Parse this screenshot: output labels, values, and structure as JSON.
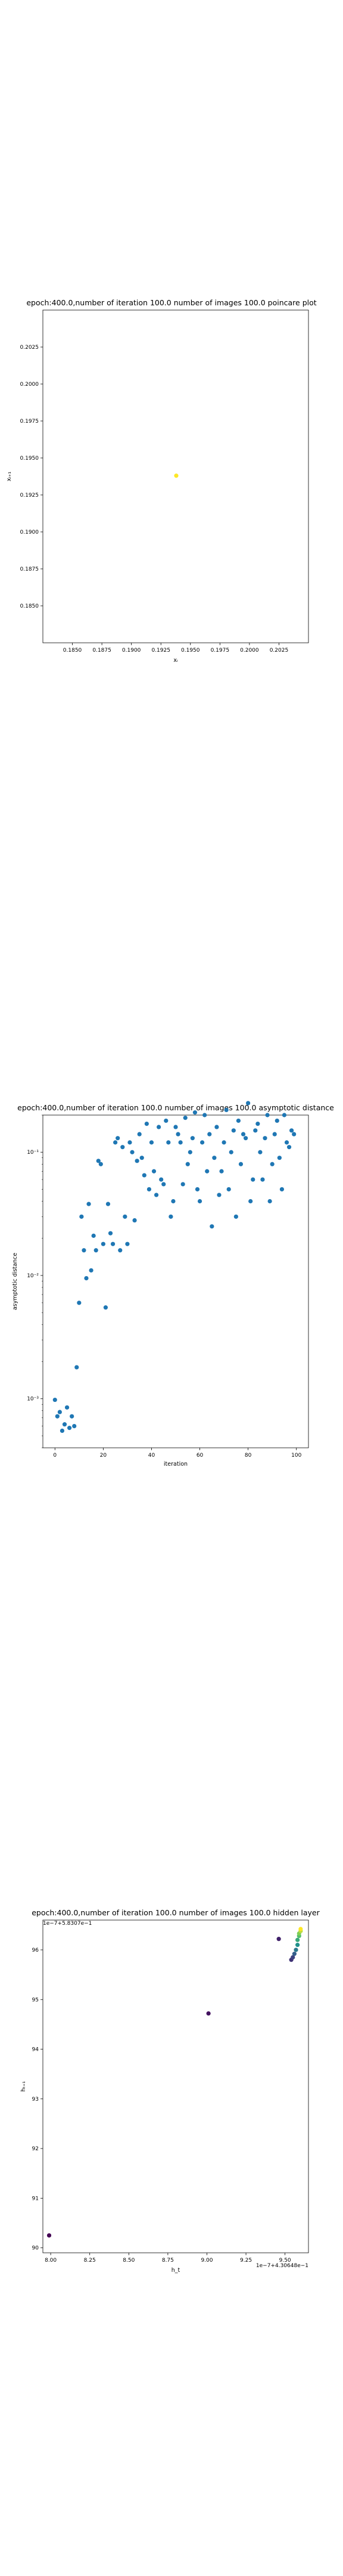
{
  "chart_data": [
    {
      "type": "scatter",
      "title": "epoch:400.0,number of iteration 100.0 number of images 100.0 poincare plot",
      "xlabel": "xᵢ",
      "ylabel": "xᵢ₊₁",
      "xlim": [
        0.1825,
        0.205
      ],
      "ylim": [
        0.1825,
        0.205
      ],
      "yscale": "linear",
      "grid": false,
      "xticks": [
        0.185,
        0.1875,
        0.19,
        0.1925,
        0.195,
        0.1975,
        0.2,
        0.2025
      ],
      "xtick_labels": [
        "0.1850",
        "0.1875",
        "0.1900",
        "0.1925",
        "0.1950",
        "0.1975",
        "0.2000",
        "0.2025"
      ],
      "yticks": [
        0.185,
        0.1875,
        0.19,
        0.1925,
        0.195,
        0.1975,
        0.2,
        0.2025
      ],
      "ytick_labels": [
        "0.1850",
        "0.1875",
        "0.1900",
        "0.1925",
        "0.1950",
        "0.1975",
        "0.2000",
        "0.2025"
      ],
      "marker_color": "#fde725",
      "points": [
        {
          "x": 0.1938,
          "y": 0.1938
        }
      ]
    },
    {
      "type": "scatter",
      "title": "epoch:400.0,number of iteration 100.0  number of images 100.0 asymptotic distance",
      "xlabel": "iteration",
      "ylabel": "asymptotic distance",
      "xlim": [
        -5,
        105
      ],
      "yscale": "log",
      "ylim": [
        0.0004,
        0.2
      ],
      "grid": false,
      "xticks": [
        0,
        20,
        40,
        60,
        80,
        100
      ],
      "xtick_labels": [
        "0",
        "20",
        "40",
        "60",
        "80",
        "100"
      ],
      "yticks": [
        0.001,
        0.01,
        0.1
      ],
      "ytick_labels": [
        "10⁻³",
        "10⁻²",
        "10⁻¹"
      ],
      "marker_color": "#1f77b4",
      "x": [
        0,
        1,
        2,
        3,
        4,
        5,
        6,
        7,
        8,
        9,
        10,
        11,
        12,
        13,
        14,
        15,
        16,
        17,
        18,
        19,
        20,
        21,
        22,
        23,
        24,
        25,
        26,
        27,
        28,
        29,
        30,
        31,
        32,
        33,
        34,
        35,
        36,
        37,
        38,
        39,
        40,
        41,
        42,
        43,
        44,
        45,
        46,
        47,
        48,
        49,
        50,
        51,
        52,
        53,
        54,
        55,
        56,
        57,
        58,
        59,
        60,
        61,
        62,
        63,
        64,
        65,
        66,
        67,
        68,
        69,
        70,
        71,
        72,
        73,
        74,
        75,
        76,
        77,
        78,
        79,
        80,
        81,
        82,
        83,
        84,
        85,
        86,
        87,
        88,
        89,
        90,
        91,
        92,
        93,
        94,
        95,
        96,
        97,
        98,
        99
      ],
      "y": [
        0.00098,
        0.00072,
        0.00078,
        0.00055,
        0.00062,
        0.00085,
        0.00058,
        0.00072,
        0.0006,
        0.0018,
        0.006,
        0.03,
        0.016,
        0.0095,
        0.038,
        0.011,
        0.021,
        0.016,
        0.085,
        0.08,
        0.018,
        0.0055,
        0.038,
        0.022,
        0.018,
        0.12,
        0.13,
        0.016,
        0.11,
        0.03,
        0.018,
        0.12,
        0.1,
        0.028,
        0.085,
        0.14,
        0.09,
        0.065,
        0.17,
        0.05,
        0.12,
        0.07,
        0.045,
        0.16,
        0.06,
        0.055,
        0.18,
        0.12,
        0.03,
        0.04,
        0.16,
        0.14,
        0.12,
        0.055,
        0.19,
        0.08,
        0.1,
        0.13,
        0.21,
        0.05,
        0.04,
        0.12,
        0.2,
        0.07,
        0.14,
        0.025,
        0.09,
        0.16,
        0.045,
        0.07,
        0.12,
        0.22,
        0.05,
        0.1,
        0.15,
        0.03,
        0.18,
        0.08,
        0.14,
        0.13,
        0.25,
        0.04,
        0.06,
        0.15,
        0.17,
        0.1,
        0.06,
        0.13,
        0.2,
        0.04,
        0.08,
        0.14,
        0.18,
        0.09,
        0.05,
        0.2,
        0.12,
        0.11,
        0.15,
        0.14
      ]
    },
    {
      "type": "scatter",
      "title": "epoch:400.0,number of iteration 100.0  number of images 100.0 hidden layer",
      "xlabel": "h_t",
      "ylabel": "hₜ₊₁",
      "xlim": [
        7.95,
        9.65
      ],
      "ylim": [
        89.9,
        96.6
      ],
      "grid": false,
      "xticks": [
        8.0,
        8.25,
        8.5,
        8.75,
        9.0,
        9.25,
        9.5
      ],
      "xtick_labels": [
        "8.00",
        "8.25",
        "8.50",
        "8.75",
        "9.00",
        "9.25",
        "9.50"
      ],
      "yticks": [
        90,
        91,
        92,
        93,
        94,
        95,
        96
      ],
      "ytick_labels": [
        "90",
        "91",
        "92",
        "93",
        "94",
        "95",
        "96"
      ],
      "offset_text_x": "1e−7+4.30648e−1",
      "offset_text_y": "1e−7+5.8307e−1",
      "colormap": "viridis",
      "points": [
        {
          "x": 7.99,
          "y": 90.25,
          "c": 0.0
        },
        {
          "x": 9.01,
          "y": 94.72,
          "c": 0.05
        },
        {
          "x": 9.46,
          "y": 96.22,
          "c": 0.1
        },
        {
          "x": 9.54,
          "y": 95.8,
          "c": 0.15
        },
        {
          "x": 9.55,
          "y": 95.85,
          "c": 0.2
        },
        {
          "x": 9.56,
          "y": 95.92,
          "c": 0.3
        },
        {
          "x": 9.57,
          "y": 96.0,
          "c": 0.4
        },
        {
          "x": 9.58,
          "y": 96.1,
          "c": 0.5
        },
        {
          "x": 9.58,
          "y": 96.2,
          "c": 0.6
        },
        {
          "x": 9.59,
          "y": 96.28,
          "c": 0.7
        },
        {
          "x": 9.59,
          "y": 96.33,
          "c": 0.8
        },
        {
          "x": 9.6,
          "y": 96.38,
          "c": 0.9
        },
        {
          "x": 9.6,
          "y": 96.42,
          "c": 1.0
        }
      ]
    }
  ]
}
